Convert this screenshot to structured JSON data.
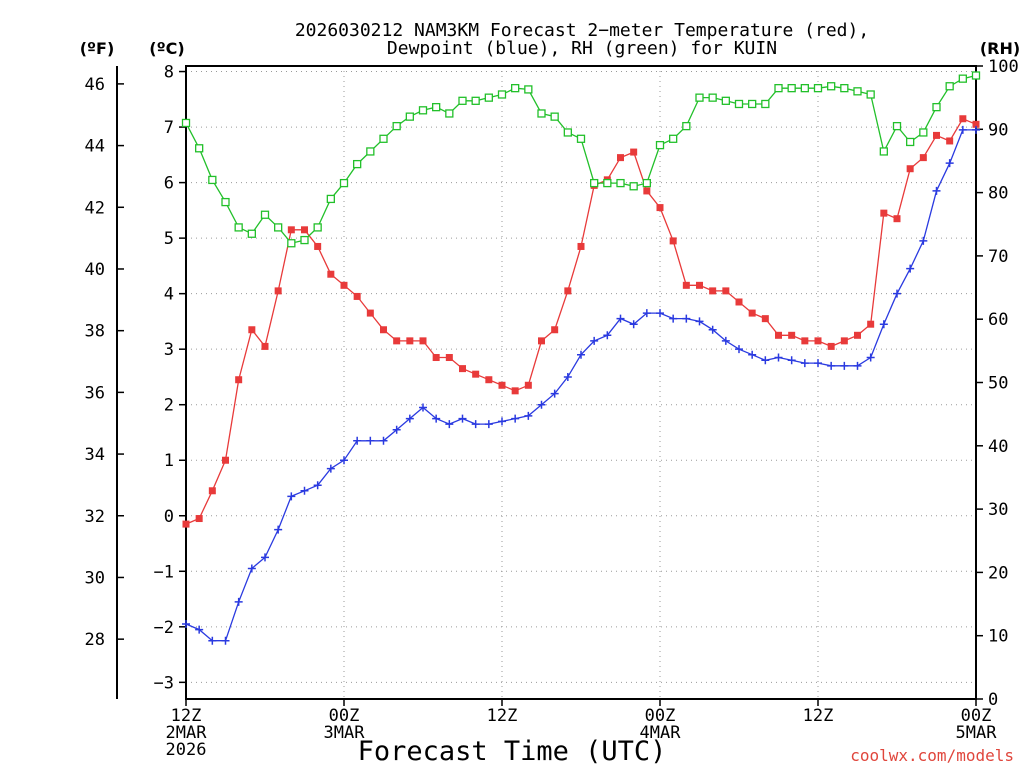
{
  "chart_data": {
    "type": "line",
    "title": "2026030212 NAM3KM Forecast 2-meter Temperature (red), Dewpoint (blue), RH (green) for KUIN",
    "title_lines": [
      "2026030212 NAM3KM Forecast 2−meter Temperature (red),",
      "Dewpoint (blue), RH (green) for KUIN"
    ],
    "xlabel": "Forecast Time (UTC)",
    "credit": "coolwx.com/models",
    "units": {
      "fahrenheit": "(ºF)",
      "celsius": "(ºC)",
      "rh": "(RH)"
    },
    "x_range_hours": [
      0,
      60
    ],
    "x_ticks": [
      {
        "hour": 0,
        "lines": [
          "12Z",
          "2MAR",
          "2026"
        ]
      },
      {
        "hour": 12,
        "lines": [
          "00Z",
          "3MAR"
        ]
      },
      {
        "hour": 24,
        "lines": [
          "12Z"
        ]
      },
      {
        "hour": 36,
        "lines": [
          "00Z",
          "4MAR"
        ]
      },
      {
        "hour": 48,
        "lines": [
          "12Z"
        ]
      },
      {
        "hour": 60,
        "lines": [
          "00Z",
          "5MAR"
        ]
      }
    ],
    "celsius_axis": {
      "range": [
        -3.3,
        8.1
      ],
      "ticks": [
        -3,
        -2,
        -1,
        0,
        1,
        2,
        3,
        4,
        5,
        6,
        7,
        8
      ],
      "tick_labels": [
        "−3",
        "−2",
        "−1",
        "0",
        "1",
        "2",
        "3",
        "4",
        "5",
        "6",
        "7",
        "8"
      ]
    },
    "fahrenheit_axis": {
      "ticks": [
        28,
        30,
        32,
        34,
        36,
        38,
        40,
        42,
        44,
        46
      ],
      "tick_labels": [
        "28",
        "30",
        "32",
        "34",
        "36",
        "38",
        "40",
        "42",
        "44",
        "46"
      ]
    },
    "rh_axis": {
      "range": [
        0,
        100
      ],
      "ticks": [
        0,
        10,
        20,
        30,
        40,
        50,
        60,
        70,
        80,
        90,
        100
      ],
      "tick_labels": [
        "0",
        "10",
        "20",
        "30",
        "40",
        "50",
        "60",
        "70",
        "80",
        "90",
        "100"
      ]
    },
    "series": [
      {
        "name": "Temperature (°C)",
        "color": "#e83a3a",
        "marker": "filled-square",
        "axis": "celsius",
        "values": [
          -0.15,
          -0.05,
          0.45,
          1.0,
          2.45,
          3.35,
          3.05,
          4.05,
          5.15,
          5.15,
          4.85,
          4.35,
          4.15,
          3.95,
          3.65,
          3.35,
          3.15,
          3.15,
          3.15,
          2.85,
          2.85,
          2.65,
          2.55,
          2.45,
          2.35,
          2.25,
          2.35,
          3.15,
          3.35,
          4.05,
          4.85,
          5.95,
          6.05,
          6.45,
          6.55,
          5.85,
          5.55,
          4.95,
          4.15,
          4.15,
          4.05,
          4.05,
          3.85,
          3.65,
          3.55,
          3.25,
          3.25,
          3.15,
          3.15,
          3.05,
          3.15,
          3.25,
          3.45,
          5.45,
          5.35,
          6.25,
          6.45,
          6.85,
          6.75,
          7.15,
          7.05
        ]
      },
      {
        "name": "Dewpoint (°C)",
        "color": "#2a3ae0",
        "marker": "plus",
        "axis": "celsius",
        "values": [
          -1.95,
          -2.05,
          -2.25,
          -2.25,
          -1.55,
          -0.95,
          -0.75,
          -0.25,
          0.35,
          0.45,
          0.55,
          0.85,
          1.0,
          1.35,
          1.35,
          1.35,
          1.55,
          1.75,
          1.95,
          1.75,
          1.65,
          1.75,
          1.65,
          1.65,
          1.7,
          1.75,
          1.8,
          2.0,
          2.2,
          2.5,
          2.9,
          3.15,
          3.25,
          3.55,
          3.45,
          3.65,
          3.65,
          3.55,
          3.55,
          3.5,
          3.35,
          3.15,
          3.0,
          2.9,
          2.8,
          2.85,
          2.8,
          2.75,
          2.75,
          2.7,
          2.7,
          2.7,
          2.85,
          3.45,
          4.0,
          4.45,
          4.95,
          5.85,
          6.35,
          6.95,
          6.95
        ]
      },
      {
        "name": "RH (%)",
        "color": "#22c02a",
        "marker": "open-square",
        "axis": "rh",
        "values": [
          91.0,
          87.0,
          82.0,
          78.5,
          74.5,
          73.5,
          76.5,
          74.5,
          72.0,
          72.5,
          74.5,
          79.0,
          81.5,
          84.5,
          86.5,
          88.5,
          90.5,
          92.0,
          93.0,
          93.5,
          92.5,
          94.5,
          94.5,
          95.0,
          95.5,
          96.5,
          96.3,
          92.5,
          92.0,
          89.5,
          88.5,
          81.5,
          81.5,
          81.5,
          81.0,
          81.5,
          87.5,
          88.5,
          90.5,
          95.0,
          95.0,
          94.5,
          94.0,
          94.0,
          94.0,
          96.5,
          96.5,
          96.5,
          96.5,
          96.8,
          96.5,
          96.0,
          95.5,
          86.5,
          90.5,
          88.0,
          89.5,
          93.5,
          96.8,
          98.0,
          98.5
        ]
      }
    ]
  }
}
